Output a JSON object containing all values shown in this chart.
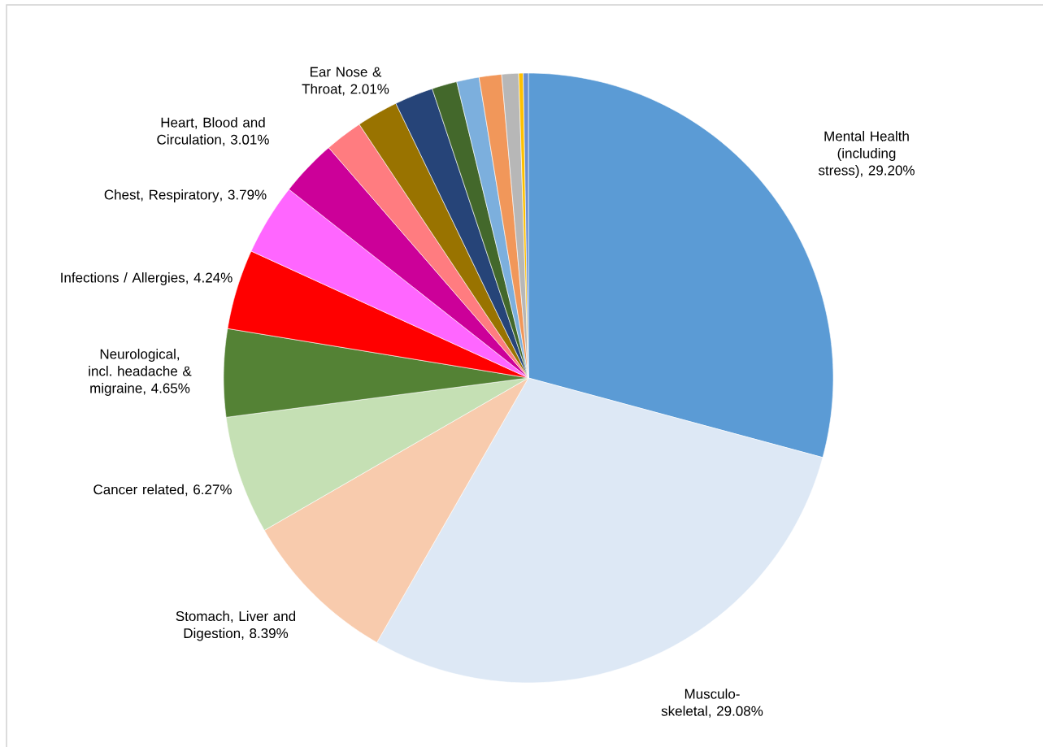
{
  "chart_data": {
    "type": "pie",
    "categories": [
      "Mental Health (including stress)",
      "Musculo-skeletal",
      "Stomach, Liver and Digestion",
      "Cancer related",
      "Neurological, incl. headache & migraine",
      "Infections / Allergies",
      "Chest, Respiratory",
      "Heart, Blood and Circulation",
      "Ear Nose & Throat",
      null,
      null,
      null,
      null,
      null,
      null,
      null,
      null
    ],
    "values": [
      29.2,
      29.08,
      8.39,
      6.27,
      4.65,
      4.24,
      3.79,
      3.01,
      2.01,
      2.2,
      2.05,
      1.33,
      1.19,
      1.19,
      0.89,
      0.24,
      0.27
    ],
    "value_labels": [
      ", 29.20%",
      ", 29.08%",
      ", 8.39%",
      ", 6.27%",
      ", 4.65%",
      ", 4.24%",
      ", 3.79%",
      ", 3.01%",
      ", 2.01%",
      null,
      null,
      null,
      null,
      null,
      null,
      null,
      null
    ],
    "colors": [
      "#5b9bd5",
      "#dde8f5",
      "#f8cbad",
      "#c5e0b4",
      "#548235",
      "#ff0000",
      "#ff66ff",
      "#cc0099",
      "#ff7c80",
      "#997300",
      "#264478",
      "#43682b",
      "#7cafdd",
      "#f1975a",
      "#b7b7b7",
      "#ffc000",
      "#698ed0"
    ]
  }
}
